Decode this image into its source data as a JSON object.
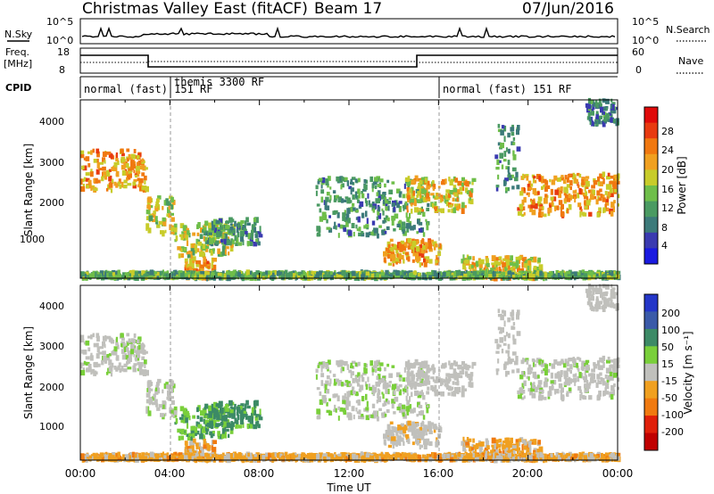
{
  "header": {
    "station": "Christmas Valley East (fitACF)",
    "beam": "Beam 17",
    "date": "07/Jun/2016"
  },
  "status_panels": {
    "nsky": {
      "label": "N.Sky",
      "tick_top": "10^5",
      "tick_bottom": "10^0"
    },
    "nsearch": {
      "label": "N.Search",
      "tick_top": "10^5",
      "tick_bottom": "10^0"
    },
    "freq": {
      "label_line1": "Freq.",
      "label_line2": "[MHz]",
      "tick_top": "18",
      "tick_bottom": "8"
    },
    "nave": {
      "label": "Nave",
      "tick_top": "60",
      "tick_bottom": "0"
    },
    "cpid": {
      "label": "CPID",
      "segments": [
        {
          "text": "normal (fast) 151 RF",
          "start_hour": 0
        },
        {
          "text": "themis 3300 RF",
          "start_hour": 3.8
        },
        {
          "text": "normal (fast) 151 RF",
          "start_hour": 16
        }
      ]
    }
  },
  "x_axis": {
    "label": "Time UT",
    "ticks": [
      "00:00",
      "04:00",
      "08:00",
      "12:00",
      "16:00",
      "20:00",
      "00:00"
    ]
  },
  "panels": [
    {
      "ylabel": "Slant Range [km]",
      "yticks": [
        "1000",
        "2000",
        "3000",
        "4000"
      ],
      "colorbar": {
        "label": "Power [dB]",
        "ticks": [
          "4",
          "8",
          "12",
          "16",
          "20",
          "24",
          "28"
        ],
        "colors": [
          "#1a1ae0",
          "#3a3ab0",
          "#3c7a7a",
          "#4a9a62",
          "#6fbe4a",
          "#c8cc2a",
          "#f0a020",
          "#f07810",
          "#e83a10",
          "#e00a0a"
        ]
      }
    },
    {
      "ylabel": "Slant Range [km]",
      "yticks": [
        "1000",
        "2000",
        "3000",
        "4000"
      ],
      "colorbar": {
        "label": "Velocity [m s⁻¹]",
        "ticks": [
          "200",
          "100",
          "50",
          "15",
          "-15",
          "-50",
          "-100",
          "-200"
        ],
        "colors": [
          "#2436c8",
          "#3a5aa8",
          "#3c8a66",
          "#79cf3a",
          "#c0c0bc",
          "#f0a020",
          "#f07a10",
          "#e0200a",
          "#c00000"
        ]
      }
    }
  ],
  "chart_data": {
    "type": "heatmap",
    "x_range_hours": [
      0,
      24
    ],
    "y_range_km": [
      180,
      4500
    ],
    "power_regions": [
      {
        "t0": 0.0,
        "t1": 2.9,
        "r0": 2300,
        "r1": 3300,
        "power": 22,
        "vel": 5
      },
      {
        "t0": 2.9,
        "t1": 4.2,
        "r0": 1250,
        "r1": 2150,
        "power": 18,
        "vel": 5
      },
      {
        "t0": 4.2,
        "t1": 6.8,
        "r0": 700,
        "r1": 1500,
        "power": 18,
        "vel": 30
      },
      {
        "t0": 4.6,
        "t1": 6.0,
        "r0": 180,
        "r1": 650,
        "power": 22,
        "vel": -20
      },
      {
        "t0": 5.5,
        "t1": 8.0,
        "r0": 1000,
        "r1": 1600,
        "power": 12,
        "vel": 40
      },
      {
        "t0": 10.5,
        "t1": 15.5,
        "r0": 1200,
        "r1": 2600,
        "power": 12,
        "vel": 10
      },
      {
        "t0": 13.5,
        "t1": 16.0,
        "r0": 500,
        "r1": 1100,
        "power": 22,
        "vel": -5
      },
      {
        "t0": 14.5,
        "t1": 17.5,
        "r0": 1800,
        "r1": 2600,
        "power": 20,
        "vel": 0
      },
      {
        "t0": 17.0,
        "t1": 20.5,
        "r0": 180,
        "r1": 700,
        "power": 20,
        "vel": -20
      },
      {
        "t0": 19.5,
        "t1": 24.0,
        "r0": 1700,
        "r1": 2700,
        "power": 22,
        "vel": 5
      },
      {
        "t0": 18.5,
        "t1": 19.5,
        "r0": 2300,
        "r1": 3900,
        "power": 12,
        "vel": 0
      },
      {
        "t0": 22.5,
        "t1": 24.0,
        "r0": 3900,
        "r1": 4500,
        "power": 10,
        "vel": 0
      },
      {
        "t0": 0.0,
        "t1": 24.0,
        "r0": 180,
        "r1": 320,
        "power": 14,
        "vel": -20
      }
    ]
  }
}
